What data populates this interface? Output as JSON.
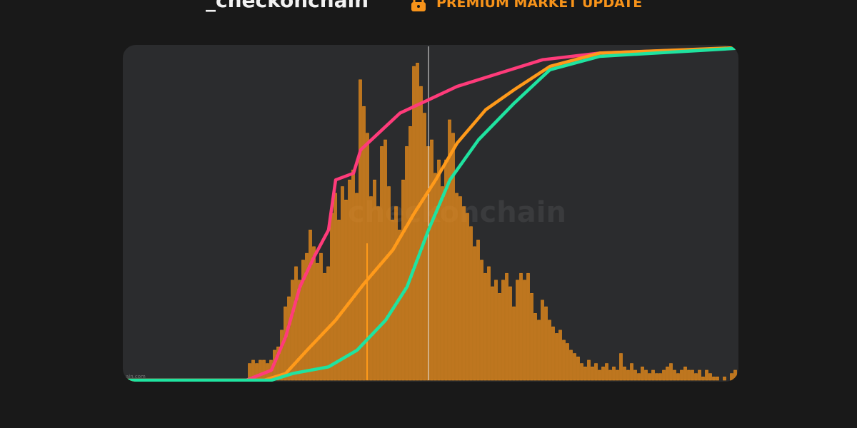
{
  "header": {
    "brand": "_checkonchain",
    "badge": "PREMIUM MARKET UPDATE"
  },
  "chart_data": {
    "type": "histogram",
    "watermark": "checkonchain",
    "source_note": "ain.com",
    "xlim": [
      0,
      172.4
    ],
    "ylim": [
      0,
      100
    ],
    "color": "#f7931a",
    "bins": [
      35,
      36,
      37,
      38,
      39,
      40,
      41,
      42,
      43,
      44,
      45,
      46,
      47,
      48,
      49,
      50,
      51,
      52,
      53,
      54,
      55,
      56,
      57,
      58,
      59,
      60,
      61,
      62,
      63,
      64,
      65,
      66,
      67,
      68,
      69,
      70,
      71,
      72,
      73,
      74,
      75,
      76,
      77,
      78,
      79,
      80,
      81,
      82,
      83,
      84,
      85,
      86,
      87,
      88,
      89,
      90,
      91,
      92,
      93,
      94,
      95,
      96,
      97,
      98,
      99,
      100,
      101,
      102,
      103,
      104,
      105,
      106,
      107,
      108,
      109,
      110,
      111,
      112,
      113,
      114,
      115,
      116,
      117,
      118,
      119,
      120,
      121,
      122,
      123,
      124,
      125,
      126,
      127,
      128,
      129,
      130,
      131,
      132,
      133,
      134,
      135,
      136,
      137,
      138,
      139,
      140,
      141,
      142,
      143,
      144,
      145,
      146,
      147,
      148,
      149,
      150,
      151,
      152,
      153,
      154,
      155,
      156,
      157,
      158,
      159,
      160,
      161,
      162,
      163,
      164,
      165,
      166,
      167,
      168,
      169,
      170,
      171,
      172
    ],
    "values": [
      5,
      6,
      5,
      6,
      6,
      5,
      6,
      9,
      10,
      15,
      22,
      25,
      30,
      34,
      30,
      36,
      38,
      45,
      40,
      35,
      38,
      32,
      34,
      50,
      56,
      48,
      58,
      54,
      60,
      63,
      56,
      90,
      82,
      74,
      55,
      60,
      52,
      70,
      72,
      58,
      48,
      52,
      45,
      60,
      70,
      76,
      94,
      95,
      88,
      80,
      70,
      72,
      62,
      66,
      58,
      66,
      78,
      74,
      56,
      55,
      52,
      50,
      46,
      40,
      42,
      36,
      32,
      34,
      28,
      30,
      26,
      30,
      32,
      28,
      22,
      30,
      32,
      30,
      32,
      26,
      20,
      18,
      24,
      22,
      18,
      16,
      14,
      15,
      12,
      11,
      9,
      8,
      7,
      5,
      4,
      6,
      4,
      5,
      3,
      4,
      5,
      3,
      4,
      3,
      8,
      4,
      3,
      5,
      3,
      2,
      4,
      3,
      2,
      3,
      2,
      2,
      3,
      4,
      5,
      3,
      2,
      3,
      4,
      3,
      3,
      2,
      3,
      1,
      3,
      2,
      1,
      1,
      0,
      1,
      0,
      2,
      3
    ],
    "lines": [
      {
        "color": "#ff3b7a",
        "x": [
          0,
          34.6,
          41.6,
          45.6,
          49.6,
          53.6,
          57.6,
          59.6,
          64.6,
          66.6,
          71.6,
          77.6,
          85.6,
          93.6,
          105.6,
          117.6,
          133.6,
          171.6
        ],
        "values": [
          0,
          0,
          3,
          13,
          28,
          37,
          45,
          60,
          62,
          69,
          74,
          80,
          84,
          88,
          92,
          96,
          98,
          99.5
        ]
      },
      {
        "color": "#ff9a1a",
        "x": [
          0,
          39.6,
          45.6,
          51.6,
          59.6,
          67.6,
          75.6,
          81.6,
          87.6,
          93.6,
          101.6,
          109.6,
          119.6,
          133.6,
          171.6
        ],
        "values": [
          0,
          0,
          2,
          9,
          18,
          29,
          39,
          50,
          60,
          71,
          81,
          87,
          94,
          98,
          99.6
        ]
      },
      {
        "color": "#1fe3a0",
        "x": [
          0,
          41.6,
          47.6,
          57.6,
          65.6,
          73.6,
          79.6,
          85.6,
          91.6,
          99.6,
          109.6,
          119.6,
          133.6,
          171.6
        ],
        "values": [
          0,
          0,
          2,
          4,
          9,
          18,
          28,
          45,
          60,
          72,
          83,
          93,
          97,
          99.4
        ]
      }
    ],
    "vlines": [
      {
        "x": 68.4,
        "color": "#ff9a1a",
        "top": 41
      },
      {
        "x": 85.6,
        "color": "#e8e8e8",
        "top": 100
      }
    ]
  }
}
